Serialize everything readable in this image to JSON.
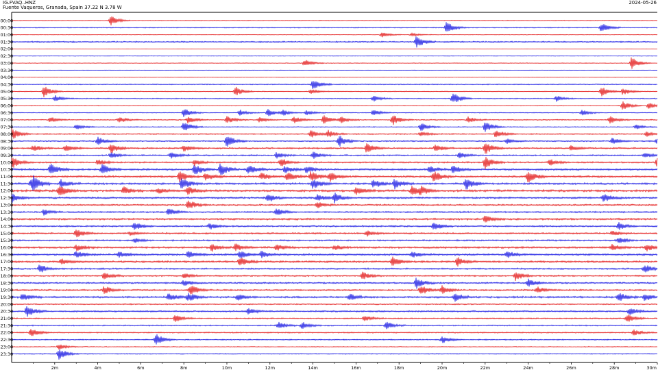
{
  "header": {
    "station": "IG.FVAQ..HNZ",
    "location": "Fuente Vaqueros, Granada, Spain  37.22 N 3.78 W",
    "date": "2024-05-26"
  },
  "colors": {
    "trace_a": "#e00000",
    "trace_b": "#0000e0",
    "frame": "#000000"
  },
  "chart_data": {
    "type": "helicorder",
    "title": "",
    "x_ticks": [
      "2m",
      "4m",
      "6m",
      "8m",
      "10m",
      "12m",
      "14m",
      "16m",
      "18m",
      "20m",
      "22m",
      "24m",
      "26m",
      "28m",
      "30m"
    ],
    "x_range_minutes": [
      0,
      30
    ],
    "rows": [
      "00:00",
      "00:30",
      "01:00",
      "01:30",
      "02:00",
      "02:30",
      "03:00",
      "03:30",
      "04:00",
      "04:30",
      "05:00",
      "05:30",
      "06:00",
      "06:30",
      "07:00",
      "07:30",
      "08:00",
      "08:30",
      "09:00",
      "09:30",
      "10:00",
      "10:30",
      "11:00",
      "11:30",
      "12:00",
      "12:30",
      "13:00",
      "13:30",
      "14:00",
      "14:30",
      "15:00",
      "15:30",
      "16:00",
      "16:30",
      "17:00",
      "17:30",
      "18:00",
      "18:30",
      "19:00",
      "19:30",
      "20:00",
      "20:30",
      "21:00",
      "21:30",
      "22:00",
      "22:30",
      "23:00",
      "23:30"
    ],
    "row_colors": [
      "red",
      "blue"
    ],
    "noise_level": [
      0.05,
      0.06,
      0.04,
      0.09,
      0.02,
      0.03,
      0.04,
      0.03,
      0.03,
      0.06,
      0.05,
      0.06,
      0.05,
      0.05,
      0.07,
      0.06,
      0.08,
      0.08,
      0.1,
      0.09,
      0.1,
      0.12,
      0.12,
      0.12,
      0.14,
      0.12,
      0.1,
      0.1,
      0.12,
      0.1,
      0.1,
      0.1,
      0.12,
      0.12,
      0.12,
      0.1,
      0.1,
      0.1,
      0.1,
      0.12,
      0.08,
      0.1,
      0.08,
      0.08,
      0.08,
      0.07,
      0.06,
      0.06
    ],
    "events": [
      [
        [
          4.6,
          0.8
        ]
      ],
      [
        [
          20.2,
          1.0
        ],
        [
          27.4,
          0.8
        ]
      ],
      [
        [
          17.2,
          0.4
        ],
        [
          18.6,
          0.3
        ]
      ],
      [
        [
          18.8,
          1.0
        ]
      ],
      [],
      [],
      [
        [
          13.6,
          0.6
        ],
        [
          28.8,
          1.0
        ]
      ],
      [],
      [],
      [
        [
          14.0,
          0.9
        ]
      ],
      [
        [
          1.5,
          1.0
        ],
        [
          10.4,
          0.8
        ],
        [
          13.9,
          0.4
        ],
        [
          27.4,
          0.8
        ],
        [
          28.4,
          0.6
        ]
      ],
      [
        [
          2.0,
          0.6
        ],
        [
          16.8,
          0.5
        ],
        [
          20.5,
          1.0
        ],
        [
          25.3,
          0.5
        ]
      ],
      [
        [
          28.4,
          0.7
        ],
        [
          29.6,
          0.5
        ]
      ],
      [
        [
          8.0,
          0.8
        ],
        [
          10.6,
          0.5
        ],
        [
          11.9,
          0.6
        ],
        [
          12.6,
          0.5
        ],
        [
          13.7,
          0.4
        ],
        [
          16.8,
          0.6
        ],
        [
          26.5,
          0.5
        ]
      ],
      [
        [
          1.8,
          0.5
        ],
        [
          5.0,
          0.5
        ],
        [
          8.2,
          0.6
        ],
        [
          10.0,
          0.6
        ],
        [
          11.5,
          0.4
        ],
        [
          13.1,
          0.6
        ],
        [
          14.5,
          0.7
        ],
        [
          15.3,
          0.5
        ],
        [
          17.7,
          0.9
        ],
        [
          21.2,
          0.5
        ],
        [
          27.8,
          0.6
        ]
      ],
      [
        [
          3.0,
          0.4
        ],
        [
          8.0,
          0.9
        ],
        [
          19.0,
          0.7
        ],
        [
          22.0,
          0.9
        ],
        [
          29.0,
          0.4
        ]
      ],
      [
        [
          0.0,
          1.0
        ],
        [
          13.9,
          0.6
        ],
        [
          14.7,
          0.6
        ],
        [
          19.0,
          0.4
        ],
        [
          22.5,
          0.7
        ],
        [
          29.5,
          0.4
        ]
      ],
      [
        [
          4.0,
          0.7
        ],
        [
          10.0,
          1.0
        ],
        [
          15.2,
          1.0
        ],
        [
          23.0,
          0.4
        ],
        [
          27.9,
          0.5
        ],
        [
          30.0,
          0.6
        ]
      ],
      [
        [
          1.0,
          0.5
        ],
        [
          2.5,
          0.6
        ],
        [
          4.6,
          0.8
        ],
        [
          8.0,
          0.5
        ],
        [
          16.5,
          0.9
        ],
        [
          19.7,
          0.6
        ],
        [
          22.0,
          1.0
        ],
        [
          26.0,
          0.5
        ]
      ],
      [
        [
          4.6,
          0.5
        ],
        [
          7.4,
          0.6
        ],
        [
          12.3,
          0.5
        ],
        [
          14.0,
          0.6
        ],
        [
          20.8,
          0.5
        ],
        [
          29.4,
          0.5
        ]
      ],
      [
        [
          0.0,
          1.0
        ],
        [
          4.0,
          0.5
        ],
        [
          8.5,
          0.5
        ],
        [
          12.5,
          0.7
        ],
        [
          22.0,
          1.0
        ],
        [
          25.0,
          0.5
        ],
        [
          30.0,
          1.0
        ]
      ],
      [
        [
          1.8,
          1.0
        ],
        [
          4.2,
          0.9
        ],
        [
          8.5,
          0.9
        ],
        [
          9.7,
          1.0
        ],
        [
          11.0,
          0.8
        ],
        [
          12.7,
          0.6
        ],
        [
          13.7,
          0.6
        ],
        [
          19.4,
          0.6
        ],
        [
          20.5,
          0.6
        ]
      ],
      [
        [
          7.8,
          0.9
        ],
        [
          9.0,
          0.7
        ],
        [
          11.6,
          0.6
        ],
        [
          12.8,
          0.8
        ],
        [
          13.9,
          0.9
        ],
        [
          14.8,
          0.8
        ],
        [
          19.6,
          1.0
        ],
        [
          24.0,
          1.0
        ]
      ],
      [
        [
          0.9,
          0.7
        ],
        [
          1.0,
          0.8
        ],
        [
          2.3,
          0.7
        ],
        [
          7.9,
          1.0
        ],
        [
          14.0,
          0.9
        ],
        [
          16.8,
          0.8
        ],
        [
          17.8,
          0.8
        ],
        [
          21.1,
          1.0
        ]
      ],
      [
        [
          2.2,
          0.9
        ],
        [
          5.2,
          0.6
        ],
        [
          6.8,
          0.5
        ],
        [
          8.2,
          0.6
        ],
        [
          16.0,
          0.7
        ],
        [
          18.6,
          0.7
        ],
        [
          19.0,
          0.6
        ]
      ],
      [
        [
          0.0,
          0.8
        ],
        [
          11.9,
          0.7
        ],
        [
          14.2,
          0.5
        ],
        [
          15.0,
          0.8
        ],
        [
          27.5,
          0.7
        ]
      ],
      [
        [
          8.2,
          0.8
        ],
        [
          14.2,
          0.5
        ]
      ],
      [
        [
          1.5,
          0.5
        ],
        [
          7.3,
          0.6
        ],
        [
          12.3,
          0.6
        ]
      ],
      [
        [
          22.0,
          0.6
        ]
      ],
      [
        [
          5.7,
          0.7
        ],
        [
          9.2,
          0.5
        ],
        [
          19.6,
          0.7
        ],
        [
          28.2,
          0.6
        ]
      ],
      [
        [
          3.0,
          0.7
        ],
        [
          5.5,
          0.3
        ],
        [
          16.5,
          0.5
        ],
        [
          27.9,
          0.4
        ]
      ],
      [
        [
          5.7,
          0.4
        ],
        [
          28.2,
          0.5
        ]
      ],
      [
        [
          3.0,
          0.5
        ],
        [
          9.3,
          0.6
        ],
        [
          10.4,
          0.6
        ],
        [
          12.3,
          0.5
        ],
        [
          15.0,
          0.4
        ],
        [
          27.9,
          0.5
        ],
        [
          29.5,
          0.6
        ]
      ],
      [
        [
          3.0,
          0.6
        ],
        [
          5.0,
          0.5
        ],
        [
          8.2,
          0.6
        ],
        [
          10.6,
          0.7
        ],
        [
          11.6,
          0.6
        ],
        [
          18.6,
          0.5
        ],
        [
          23.0,
          0.6
        ]
      ],
      [
        [
          2.3,
          0.5
        ],
        [
          10.6,
          0.8
        ],
        [
          17.7,
          0.8
        ],
        [
          20.7,
          0.7
        ]
      ],
      [
        [
          1.3,
          0.7
        ],
        [
          29.4,
          0.7
        ]
      ],
      [
        [
          4.3,
          0.6
        ],
        [
          8.0,
          0.5
        ],
        [
          16.3,
          0.6
        ],
        [
          23.4,
          0.8
        ]
      ],
      [
        [
          8.0,
          0.5
        ],
        [
          18.8,
          0.9
        ],
        [
          24.0,
          0.7
        ]
      ],
      [
        [
          4.3,
          0.7
        ],
        [
          8.3,
          0.9
        ],
        [
          19.0,
          0.9
        ],
        [
          20.0,
          0.7
        ],
        [
          24.4,
          0.6
        ]
      ],
      [
        [
          0.5,
          0.6
        ],
        [
          7.3,
          0.6
        ],
        [
          8.2,
          0.8
        ],
        [
          10.5,
          0.5
        ],
        [
          15.7,
          0.5
        ],
        [
          20.6,
          0.7
        ],
        [
          28.2,
          0.7
        ],
        [
          29.4,
          0.6
        ]
      ],
      [],
      [
        [
          0.7,
          1.0
        ],
        [
          11.0,
          0.5
        ],
        [
          28.7,
          0.6
        ]
      ],
      [
        [
          7.6,
          0.6
        ],
        [
          16.4,
          0.5
        ],
        [
          28.6,
          0.7
        ]
      ],
      [
        [
          12.4,
          0.6
        ],
        [
          13.5,
          0.6
        ],
        [
          17.4,
          0.6
        ]
      ],
      [
        [
          0.9,
          0.7
        ],
        [
          28.9,
          0.5
        ]
      ],
      [
        [
          6.7,
          1.0
        ],
        [
          20.0,
          0.6
        ]
      ],
      [
        [
          2.2,
          0.5
        ]
      ],
      [
        [
          2.2,
          1.0
        ]
      ]
    ]
  }
}
